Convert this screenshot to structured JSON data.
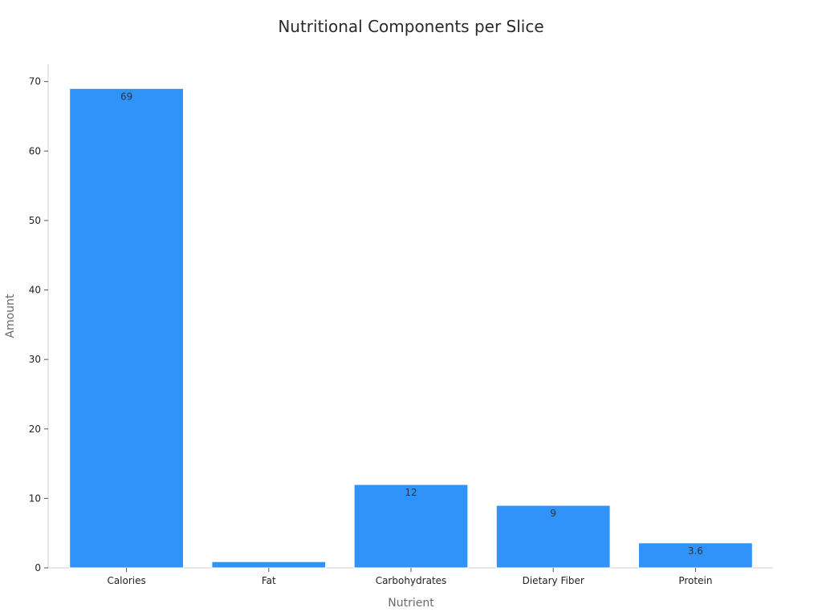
{
  "chart_data": {
    "type": "bar",
    "title": "Nutritional Components per Slice",
    "xlabel": "Nutrient",
    "ylabel": "Amount",
    "categories": [
      "Calories",
      "Fat",
      "Carbohydrates",
      "Dietary Fiber",
      "Protein"
    ],
    "values": [
      69,
      0.9,
      12,
      9,
      3.6
    ],
    "data_labels": [
      "69",
      "",
      "12",
      "9",
      "3.6"
    ],
    "ylim": [
      0,
      72.5
    ],
    "yticks": [
      0,
      10,
      20,
      30,
      40,
      50,
      60,
      70
    ],
    "grid": false,
    "legend": "none",
    "bar_color": "#2f93fa",
    "bar_edge_color": "#ffffff"
  }
}
